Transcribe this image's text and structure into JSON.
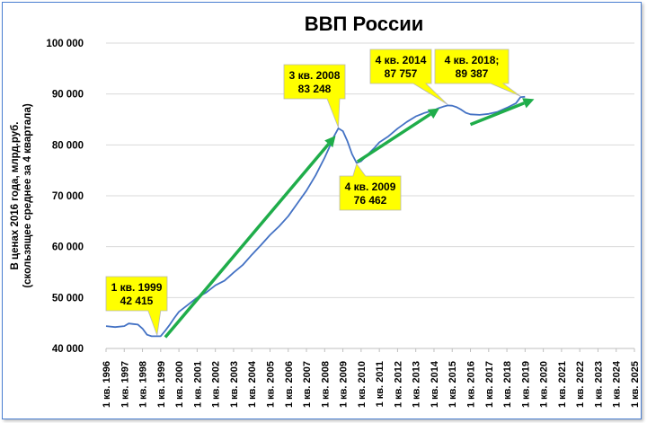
{
  "chart_data": {
    "type": "line",
    "title": "ВВП России",
    "ylabel_line1": "В ценах 2016 года, млрд.руб.",
    "ylabel_line2": "(скользящее среднее за 4 квартала)",
    "xlabel": "",
    "ylim": [
      40000,
      100000
    ],
    "y_ticks": [
      40000,
      50000,
      60000,
      70000,
      80000,
      90000,
      100000
    ],
    "y_tick_labels": [
      "40 000",
      "50 000",
      "60 000",
      "70 000",
      "80 000",
      "90 000",
      "100 000"
    ],
    "x_range": [
      1996,
      2025
    ],
    "x_tick_labels": [
      "1 кв. 1996",
      "1 кв. 1997",
      "1 кв. 1998",
      "1 кв. 1999",
      "1 кв. 2000",
      "1 кв. 2001",
      "1 кв. 2002",
      "1 кв. 2003",
      "1 кв. 2004",
      "1 кв. 2005",
      "1 кв. 2006",
      "1 кв. 2007",
      "1 кв. 2008",
      "1 кв. 2009",
      "1 кв. 2010",
      "1 кв. 2011",
      "1 кв. 2012",
      "1 кв. 2013",
      "1 кв. 2014",
      "1 кв. 2015",
      "1 кв. 2016",
      "1 кв. 2017",
      "1 кв. 2018",
      "1 кв. 2019",
      "1 кв. 2020",
      "1 кв. 2021",
      "1 кв. 2022",
      "1 кв. 2023",
      "1 кв. 2024",
      "1 кв. 2025"
    ],
    "grid": true,
    "series": [
      {
        "color": "#4472c4",
        "points": [
          [
            1996.0,
            44400
          ],
          [
            1996.5,
            44200
          ],
          [
            1997.0,
            44400
          ],
          [
            1997.25,
            44900
          ],
          [
            1997.5,
            44800
          ],
          [
            1997.75,
            44700
          ],
          [
            1998.0,
            43900
          ],
          [
            1998.25,
            42700
          ],
          [
            1998.5,
            42400
          ],
          [
            1999.0,
            42415
          ],
          [
            1999.25,
            43500
          ],
          [
            1999.5,
            44700
          ],
          [
            1999.75,
            46000
          ],
          [
            2000.0,
            47200
          ],
          [
            2000.5,
            48600
          ],
          [
            2001.0,
            50000
          ],
          [
            2001.5,
            51000
          ],
          [
            2002.0,
            52400
          ],
          [
            2002.5,
            53300
          ],
          [
            2003.0,
            54900
          ],
          [
            2003.5,
            56400
          ],
          [
            2004.0,
            58400
          ],
          [
            2004.5,
            60300
          ],
          [
            2005.0,
            62300
          ],
          [
            2005.5,
            64000
          ],
          [
            2006.0,
            66000
          ],
          [
            2006.5,
            68500
          ],
          [
            2007.0,
            71000
          ],
          [
            2007.5,
            74000
          ],
          [
            2008.0,
            77500
          ],
          [
            2008.25,
            79500
          ],
          [
            2008.5,
            81600
          ],
          [
            2008.75,
            83248
          ],
          [
            2009.0,
            82700
          ],
          [
            2009.25,
            80700
          ],
          [
            2009.5,
            78200
          ],
          [
            2009.75,
            76462
          ],
          [
            2010.0,
            76800
          ],
          [
            2010.25,
            77700
          ],
          [
            2010.5,
            78600
          ],
          [
            2010.75,
            79500
          ],
          [
            2011.0,
            80500
          ],
          [
            2011.5,
            81700
          ],
          [
            2012.0,
            83200
          ],
          [
            2012.5,
            84500
          ],
          [
            2013.0,
            85600
          ],
          [
            2013.5,
            86300
          ],
          [
            2014.0,
            86800
          ],
          [
            2014.25,
            87200
          ],
          [
            2014.5,
            87500
          ],
          [
            2014.75,
            87757
          ],
          [
            2015.0,
            87700
          ],
          [
            2015.25,
            87400
          ],
          [
            2015.5,
            86900
          ],
          [
            2015.75,
            86300
          ],
          [
            2016.0,
            86000
          ],
          [
            2016.5,
            85900
          ],
          [
            2017.0,
            86100
          ],
          [
            2017.5,
            86500
          ],
          [
            2018.0,
            87300
          ],
          [
            2018.5,
            88200
          ],
          [
            2018.75,
            89387
          ],
          [
            2019.0,
            89450
          ]
        ]
      }
    ],
    "trend_arrows": [
      {
        "from": [
          1999.25,
          42200
        ],
        "to": [
          2008.6,
          81800
        ]
      },
      {
        "from": [
          2009.8,
          76700
        ],
        "to": [
          2014.3,
          87200
        ]
      },
      {
        "from": [
          2016.0,
          84000
        ],
        "to": [
          2019.5,
          89000
        ]
      }
    ],
    "callouts": [
      {
        "line1": "1 кв. 1999",
        "line2": "42 415",
        "x": 1999.0,
        "y": 42415
      },
      {
        "line1": "3 кв. 2008",
        "line2": "83 248",
        "x": 2008.75,
        "y": 83248
      },
      {
        "line1": "4 кв. 2009",
        "line2": "76 462",
        "x": 2009.75,
        "y": 76462
      },
      {
        "line1": "4 кв. 2014",
        "line2": "87 757",
        "x": 2014.75,
        "y": 87757
      },
      {
        "line1": "4 кв. 2018;",
        "line2": "89 387",
        "x": 2018.75,
        "y": 89387
      }
    ],
    "colors": {
      "line": "#4472c4",
      "arrow": "#1fad4a",
      "callout_fill": "#ffff00",
      "grid": "#d9d9d9",
      "frame": "#4a7fd1"
    }
  }
}
